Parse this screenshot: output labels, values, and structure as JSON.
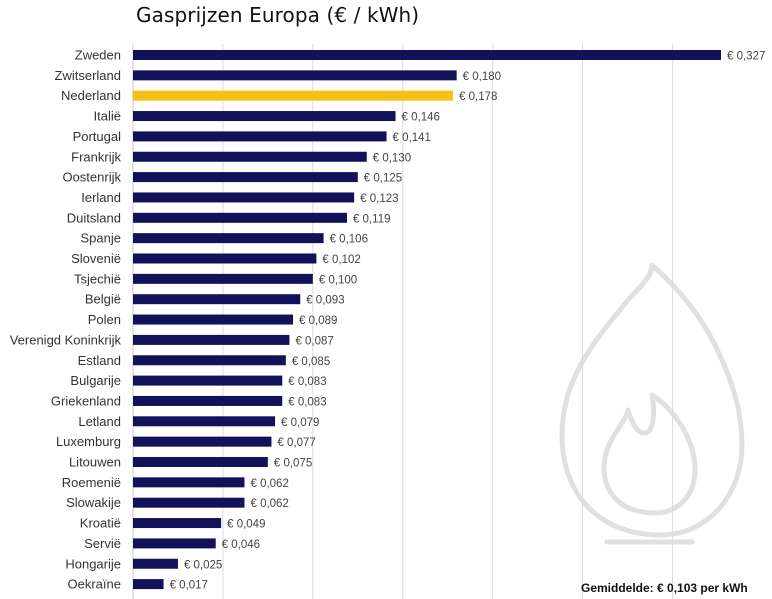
{
  "chart_data": {
    "type": "bar",
    "orientation": "horizontal",
    "title": "Gasprijzen Europa (€ / kWh)",
    "xlabel": "",
    "ylabel": "",
    "xlim": [
      0,
      0.35
    ],
    "grid": true,
    "categories": [
      "Zweden",
      "Zwitserland",
      "Nederland",
      "Italië",
      "Portugal",
      "Frankrijk",
      "Oostenrijk",
      "Ierland",
      "Duitsland",
      "Spanje",
      "Slovenië",
      "Tsjechië",
      "België",
      "Polen",
      "Verenigd Koninkrijk",
      "Estland",
      "Bulgarije",
      "Griekenland",
      "Letland",
      "Luxemburg",
      "Litouwen",
      "Roemenië",
      "Slowakije",
      "Kroatië",
      "Servië",
      "Hongarije",
      "Oekraïne"
    ],
    "values": [
      0.327,
      0.18,
      0.178,
      0.146,
      0.141,
      0.13,
      0.125,
      0.123,
      0.119,
      0.106,
      0.102,
      0.1,
      0.093,
      0.089,
      0.087,
      0.085,
      0.083,
      0.083,
      0.079,
      0.077,
      0.075,
      0.062,
      0.062,
      0.049,
      0.046,
      0.025,
      0.017
    ],
    "value_labels": [
      "€ 0,327",
      "€ 0,180",
      "€ 0,178",
      "€ 0,146",
      "€ 0,141",
      "€ 0,130",
      "€ 0,125",
      "€ 0,123",
      "€ 0,119",
      "€ 0,106",
      "€ 0,102",
      "€ 0,100",
      "€ 0,093",
      "€ 0,089",
      "€ 0,087",
      "€ 0,085",
      "€ 0,083",
      "€ 0,083",
      "€ 0,079",
      "€ 0,077",
      "€ 0,075",
      "€ 0,062",
      "€ 0,062",
      "€ 0,049",
      "€ 0,046",
      "€ 0,025",
      "€ 0,017"
    ],
    "highlight_category": "Nederland",
    "annotation": "Gemiddelde: € 0,103 per kWh"
  },
  "colors": {
    "bar": "#13115a",
    "highlight": "#f5c116",
    "grid": "#dcdcdc",
    "axis_text": "#333333",
    "label_text": "#444444",
    "watermark": "#e0e0e0"
  },
  "watermark_icon": "gas-flame-icon"
}
